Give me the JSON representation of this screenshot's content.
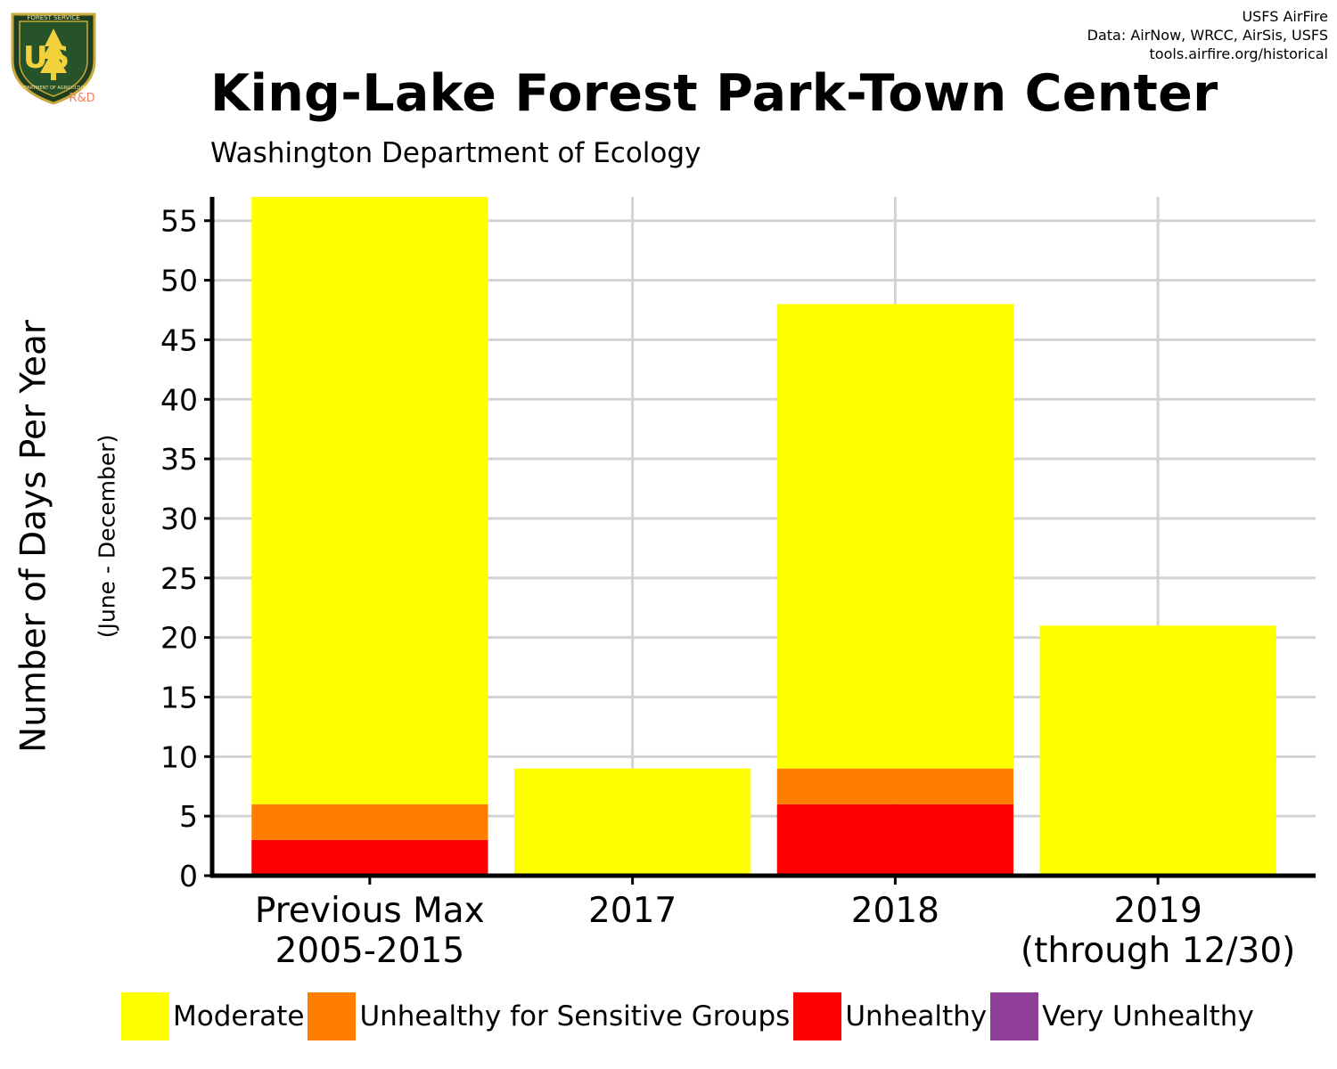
{
  "logo": {
    "top_text": "FOREST SERVICE",
    "initials": "US",
    "bottom_text": "DEPARTMENT OF AGRICULTURE",
    "tag": "R&D",
    "icon": "forest-service-shield-icon"
  },
  "credits": [
    "USFS AirFire",
    "Data: AirNow, WRCC, AirSis, USFS",
    "tools.airfire.org/historical"
  ],
  "colors": {
    "Moderate": "#ffff00",
    "Unhealthy for Sensitive Groups": "#ff7e00",
    "Unhealthy": "#ff0000",
    "Very Unhealthy": "#8f3f97"
  },
  "chart_data": {
    "type": "bar",
    "stacked": true,
    "title": "King-Lake Forest Park-Town Center",
    "subtitle": "Washington Department of Ecology",
    "ylabel": "Number of Days Per Year",
    "ylabel_secondary": "(June - December)",
    "xlabel": "",
    "categories": [
      [
        "Previous Max",
        "2005-2015"
      ],
      [
        "2017"
      ],
      [
        "2018"
      ],
      [
        "2019",
        "(through 12/30)"
      ]
    ],
    "series": [
      {
        "name": "Unhealthy",
        "values": [
          3,
          0,
          6,
          0
        ]
      },
      {
        "name": "Unhealthy for Sensitive Groups",
        "values": [
          3,
          0,
          3,
          0
        ]
      },
      {
        "name": "Moderate",
        "values": [
          51,
          9,
          39,
          21
        ]
      },
      {
        "name": "Very Unhealthy",
        "values": [
          0,
          0,
          0,
          0
        ]
      }
    ],
    "totals": [
      57,
      9,
      48,
      21
    ],
    "ylim": [
      0,
      57
    ],
    "yticks": [
      0,
      5,
      10,
      15,
      20,
      25,
      30,
      35,
      40,
      45,
      50,
      55
    ],
    "grid": true,
    "legend": {
      "position": "bottom",
      "items": [
        "Moderate",
        "Unhealthy for Sensitive Groups",
        "Unhealthy",
        "Very Unhealthy"
      ]
    }
  }
}
